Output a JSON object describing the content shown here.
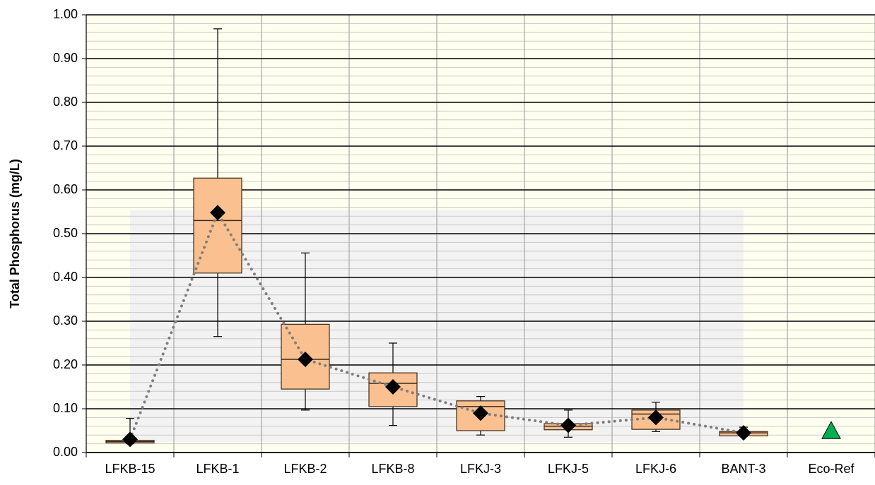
{
  "chart_data": {
    "type": "box",
    "y_label": "Total Phosphorus (mg/L)",
    "categories": [
      "LFKB-15",
      "LFKB-1",
      "LFKB-2",
      "LFKB-8",
      "LFKJ-3",
      "LFKJ-5",
      "LFKJ-6",
      "BANT-3",
      "Eco-Ref"
    ],
    "min": [
      0.02,
      0.265,
      0.097,
      0.062,
      0.04,
      0.035,
      0.048,
      0.037,
      null
    ],
    "q1": [
      0.022,
      0.41,
      0.145,
      0.105,
      0.05,
      0.052,
      0.053,
      0.038,
      null
    ],
    "median": [
      0.025,
      0.53,
      0.213,
      0.158,
      0.105,
      0.06,
      0.088,
      0.045,
      null
    ],
    "q3": [
      0.028,
      0.627,
      0.293,
      0.182,
      0.118,
      0.066,
      0.097,
      0.048,
      null
    ],
    "max": [
      0.078,
      0.968,
      0.456,
      0.25,
      0.128,
      0.097,
      0.115,
      0.058,
      null
    ],
    "mean": [
      0.03,
      0.548,
      0.213,
      0.15,
      0.09,
      0.062,
      0.08,
      0.045,
      null
    ],
    "reference_values": [
      null,
      null,
      null,
      null,
      null,
      null,
      null,
      null,
      0.048
    ],
    "box_color": "#fac090",
    "mean_color": "#000000",
    "mean_line_color": "#7f7f7f",
    "reference_color": "#00b050",
    "shaded_band": [
      0.025,
      0.555
    ],
    "shaded_color": "#f2f2f2",
    "background": "#fffff0",
    "ylim": [
      0,
      1
    ],
    "yticks": [
      {
        "value": 0,
        "label": "0.00"
      },
      {
        "value": 0.1,
        "label": "0.10"
      },
      {
        "value": 0.2,
        "label": "0.20"
      },
      {
        "value": 0.3,
        "label": "0.30"
      },
      {
        "value": 0.4,
        "label": "0.40"
      },
      {
        "value": 0.5,
        "label": "0.50"
      },
      {
        "value": 0.6,
        "label": "0.60"
      },
      {
        "value": 0.7,
        "label": "0.70"
      },
      {
        "value": 0.8,
        "label": "0.80"
      },
      {
        "value": 0.9,
        "label": "0.90"
      },
      {
        "value": 1,
        "label": "1.00"
      }
    ],
    "minor_yticks": [
      0.02,
      0.04,
      0.06,
      0.08,
      0.12,
      0.14,
      0.16,
      0.18,
      0.22,
      0.24,
      0.26,
      0.28,
      0.32,
      0.34,
      0.36,
      0.38,
      0.42,
      0.44,
      0.46,
      0.48,
      0.52,
      0.54,
      0.56,
      0.58,
      0.62,
      0.64,
      0.66,
      0.68,
      0.72,
      0.74,
      0.76,
      0.78,
      0.82,
      0.84,
      0.86,
      0.88,
      0.92,
      0.94,
      0.96,
      0.98
    ],
    "grid": true
  }
}
